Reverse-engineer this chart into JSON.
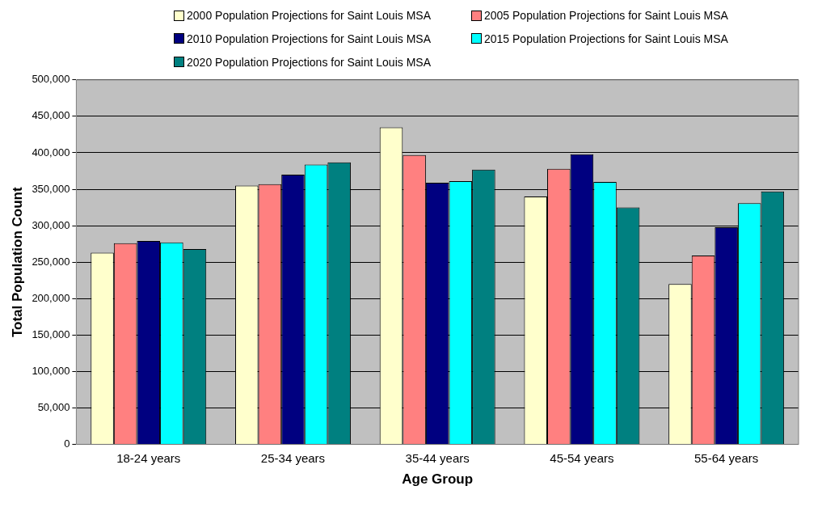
{
  "chart_data": {
    "type": "bar",
    "xlabel": "Age Group",
    "ylabel": "Total Population Count",
    "categories": [
      "18-24 years",
      "25-34 years",
      "35-44 years",
      "45-54 years",
      "55-64 years"
    ],
    "series": [
      {
        "name": "2000 Population Projections for Saint Louis MSA",
        "color": "#ffffcc",
        "values": [
          263000,
          355000,
          435000,
          340000,
          220000
        ]
      },
      {
        "name": "2005 Population Projections for Saint Louis MSA",
        "color": "#ff8080",
        "values": [
          276000,
          357000,
          397000,
          378000,
          259000
        ]
      },
      {
        "name": "2010 Population Projections for Saint Louis MSA",
        "color": "#000080",
        "values": [
          279000,
          370000,
          359000,
          398000,
          298000
        ]
      },
      {
        "name": "2015 Population Projections for Saint Louis MSA",
        "color": "#00ffff",
        "values": [
          277000,
          384000,
          361000,
          360000,
          331000
        ]
      },
      {
        "name": "2020 Population Projections for Saint Louis MSA",
        "color": "#008080",
        "values": [
          268000,
          387000,
          377000,
          325000,
          347000
        ]
      }
    ],
    "ylim": [
      0,
      500000
    ],
    "yticks": [
      0,
      {
        "value": 50000,
        "label": "50,000"
      },
      {
        "value": 100000,
        "label": "100,000"
      },
      {
        "value": 150000,
        "label": "150,000"
      },
      {
        "value": 200000,
        "label": "200,000"
      },
      {
        "value": 250000,
        "label": "250,000"
      },
      {
        "value": 300000,
        "label": "300,000"
      },
      {
        "value": 350000,
        "label": "350,000"
      },
      {
        "value": 400000,
        "label": "400,000"
      },
      {
        "value": 450000,
        "label": "450,000"
      },
      {
        "value": 500000,
        "label": "500,000"
      }
    ],
    "grid": "y",
    "legend": "top"
  }
}
